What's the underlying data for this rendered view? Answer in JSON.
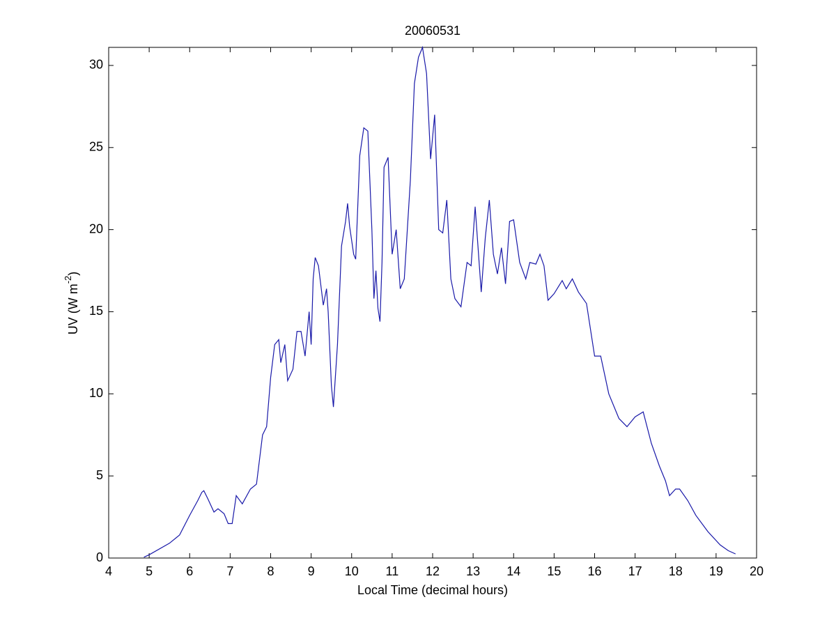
{
  "chart_data": {
    "type": "line",
    "title": "20060531",
    "xlabel": "Local Time (decimal hours)",
    "ylabel": [
      "UV (W m",
      "-2",
      ")"
    ],
    "xlim": [
      4,
      20
    ],
    "xticks": [
      4,
      5,
      6,
      7,
      8,
      9,
      10,
      11,
      12,
      13,
      14,
      15,
      16,
      17,
      18,
      19,
      20
    ],
    "ylim": [
      0,
      31.1
    ],
    "yticks": [
      0,
      5,
      10,
      15,
      20,
      25,
      30
    ],
    "grid": false,
    "box": true,
    "series": [
      {
        "color": "#1818a8",
        "x": [
          4.87,
          5.0,
          5.5,
          5.75,
          6.0,
          6.2,
          6.3,
          6.35,
          6.45,
          6.6,
          6.7,
          6.85,
          6.95,
          7.05,
          7.15,
          7.3,
          7.5,
          7.65,
          7.8,
          7.9,
          8.0,
          8.1,
          8.2,
          8.25,
          8.35,
          8.42,
          8.55,
          8.65,
          8.75,
          8.85,
          8.95,
          9.0,
          9.05,
          9.1,
          9.18,
          9.3,
          9.38,
          9.42,
          9.5,
          9.55,
          9.65,
          9.75,
          9.85,
          9.9,
          9.95,
          10.05,
          10.1,
          10.2,
          10.3,
          10.4,
          10.5,
          10.55,
          10.6,
          10.65,
          10.7,
          10.75,
          10.8,
          10.9,
          11.0,
          11.1,
          11.2,
          11.3,
          11.45,
          11.55,
          11.65,
          11.75,
          11.85,
          11.95,
          12.05,
          12.15,
          12.25,
          12.35,
          12.45,
          12.55,
          12.7,
          12.85,
          12.95,
          13.05,
          13.2,
          13.3,
          13.4,
          13.5,
          13.6,
          13.7,
          13.8,
          13.9,
          14.0,
          14.15,
          14.3,
          14.4,
          14.55,
          14.65,
          14.75,
          14.85,
          15.0,
          15.1,
          15.2,
          15.3,
          15.45,
          15.6,
          15.8,
          16.0,
          16.15,
          16.35,
          16.6,
          16.8,
          17.0,
          17.2,
          17.4,
          17.6,
          17.75,
          17.85,
          18.0,
          18.1,
          18.3,
          18.5,
          18.8,
          19.1,
          19.3,
          19.48
        ],
        "values": [
          0.05,
          0.2,
          0.9,
          1.4,
          2.6,
          3.5,
          4.0,
          4.1,
          3.6,
          2.8,
          3.0,
          2.7,
          2.1,
          2.1,
          3.8,
          3.3,
          4.2,
          4.5,
          7.5,
          8.0,
          11.0,
          13.0,
          13.3,
          11.9,
          13.0,
          10.8,
          11.5,
          13.8,
          13.8,
          12.3,
          15.0,
          13.0,
          17.0,
          18.3,
          17.8,
          15.4,
          16.4,
          15.0,
          10.5,
          9.2,
          13.0,
          19.0,
          20.5,
          21.6,
          20.2,
          18.5,
          18.2,
          24.5,
          26.2,
          26.0,
          20.0,
          15.8,
          17.5,
          15.2,
          14.4,
          18.0,
          23.8,
          24.4,
          18.5,
          20.0,
          16.4,
          17.0,
          23.0,
          28.9,
          30.5,
          31.1,
          29.5,
          24.3,
          27.0,
          20.0,
          19.8,
          21.8,
          17.0,
          15.8,
          15.3,
          18.0,
          17.8,
          21.4,
          16.2,
          19.5,
          21.8,
          18.5,
          17.3,
          18.9,
          16.7,
          20.5,
          20.6,
          18.0,
          17.0,
          18.0,
          17.9,
          18.5,
          17.8,
          15.7,
          16.1,
          16.5,
          16.9,
          16.4,
          17.0,
          16.2,
          15.5,
          12.3,
          12.3,
          10.0,
          8.5,
          8.0,
          8.6,
          8.9,
          7.0,
          5.6,
          4.7,
          3.8,
          4.2,
          4.2,
          3.5,
          2.6,
          1.6,
          0.8,
          0.45,
          0.25
        ]
      }
    ]
  }
}
